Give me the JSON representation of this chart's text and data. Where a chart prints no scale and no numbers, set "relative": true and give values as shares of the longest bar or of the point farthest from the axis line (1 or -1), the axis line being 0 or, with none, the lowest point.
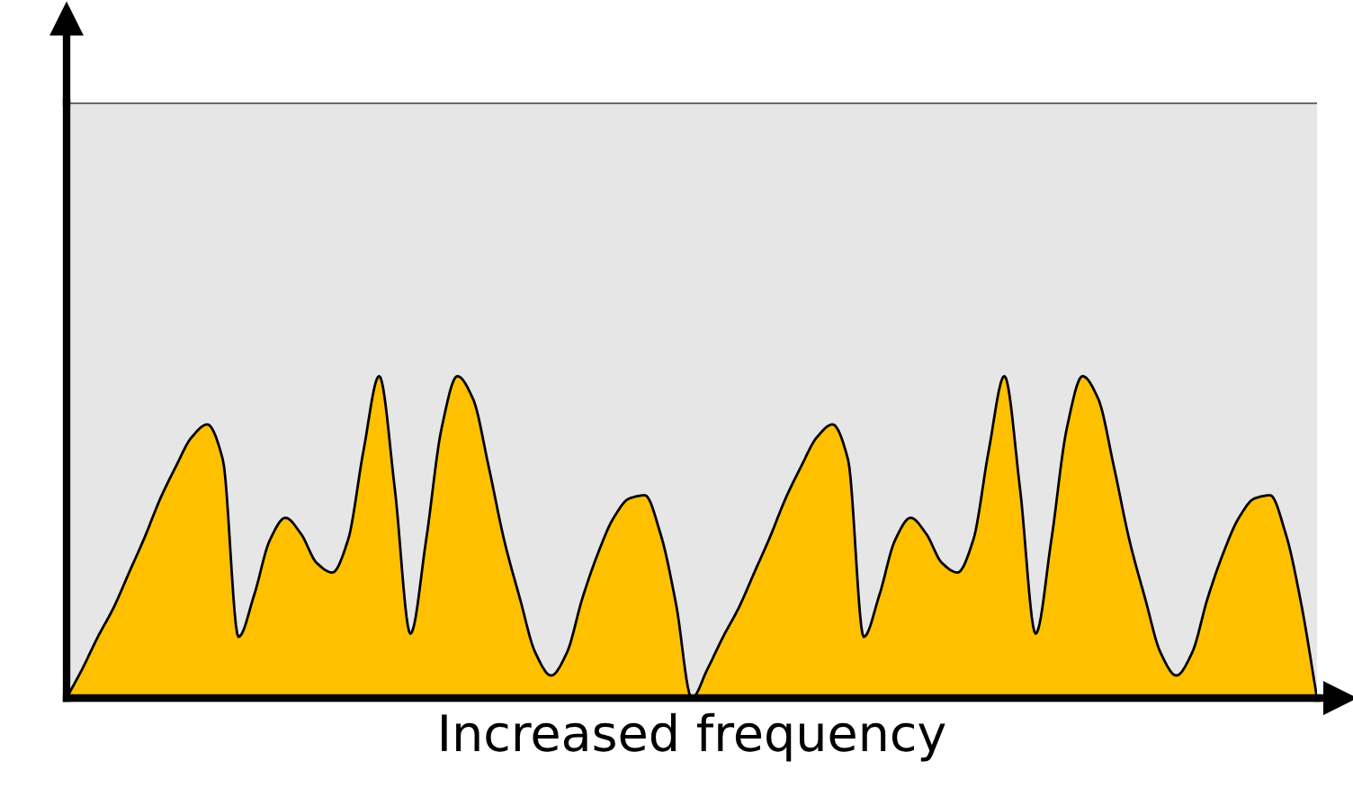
{
  "chart_data": {
    "type": "area",
    "relative": true,
    "xlabel": "Increased frequency",
    "categories": [
      null,
      null,
      null,
      null,
      null,
      null,
      null,
      null,
      null,
      null,
      null,
      null,
      null,
      null,
      null,
      null,
      null,
      null,
      null,
      null,
      null,
      null,
      null,
      null,
      null,
      null,
      null,
      null,
      null,
      null,
      null,
      null,
      null,
      null,
      null,
      null,
      null,
      null,
      null,
      null,
      null,
      null,
      null,
      null,
      null,
      null,
      null,
      null,
      null,
      null,
      null,
      null,
      null,
      null,
      null,
      null,
      null,
      null,
      null,
      null,
      null,
      null,
      null,
      null,
      null,
      null,
      null,
      null,
      null,
      null,
      null,
      null,
      null,
      null,
      null,
      null,
      null,
      null,
      null,
      null,
      null
    ],
    "bands": [
      {
        "axis": "y",
        "from": 0,
        "to": 1.85,
        "color": "#e6e6e6"
      }
    ],
    "series": [
      {
        "color": "#ffc000",
        "values": [
          0,
          0.09,
          0.19,
          0.28,
          0.39,
          0.5,
          0.62,
          0.72,
          0.81,
          0.85,
          0.74,
          0.19,
          0.32,
          0.49,
          0.56,
          0.51,
          0.42,
          0.39,
          0.49,
          0.77,
          1,
          0.65,
          0.2,
          0.49,
          0.84,
          1,
          0.93,
          0.72,
          0.49,
          0.31,
          0.14,
          0.07,
          0.14,
          0.31,
          0.45,
          0.56,
          0.62,
          0.63,
          0.51,
          0.29,
          0,
          0.09,
          0.19,
          0.28,
          0.39,
          0.5,
          0.62,
          0.72,
          0.81,
          0.85,
          0.74,
          0.19,
          0.32,
          0.49,
          0.56,
          0.51,
          0.42,
          0.39,
          0.49,
          0.77,
          1,
          0.65,
          0.2,
          0.49,
          0.84,
          1,
          0.93,
          0.72,
          0.49,
          0.31,
          0.14,
          0.07,
          0.14,
          0.31,
          0.45,
          0.56,
          0.62,
          0.63,
          0.51,
          0.29,
          0
        ]
      }
    ]
  }
}
